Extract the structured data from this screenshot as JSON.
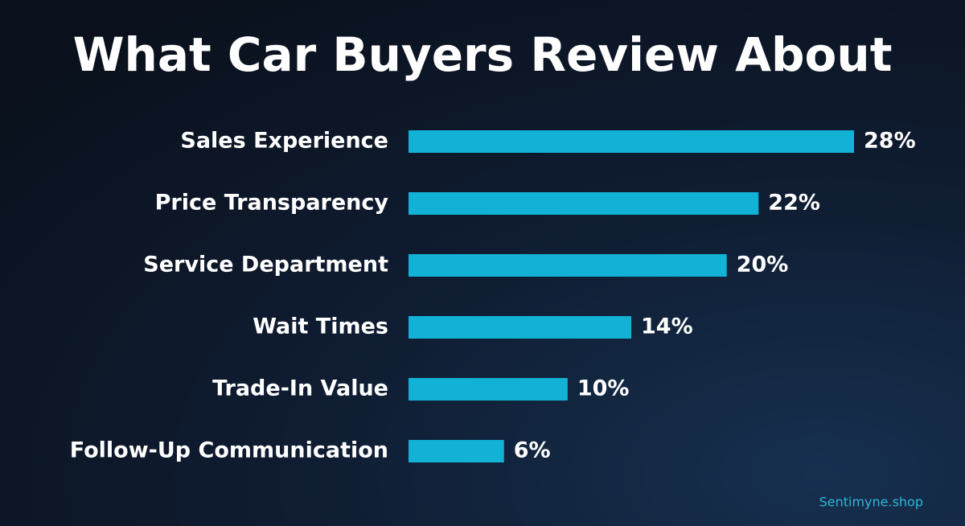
{
  "chart_data": {
    "type": "bar",
    "orientation": "horizontal",
    "title": "What Car Buyers Review About",
    "categories": [
      "Sales Experience",
      "Price Transparency",
      "Service Department",
      "Wait Times",
      "Trade-In Value",
      "Follow-Up Communication"
    ],
    "values": [
      28,
      22,
      20,
      14,
      10,
      6
    ],
    "value_labels": [
      "28%",
      "22%",
      "20%",
      "14%",
      "10%",
      "6%"
    ],
    "color": "#12b2d6",
    "watermark": "Sentimyne.shop"
  }
}
